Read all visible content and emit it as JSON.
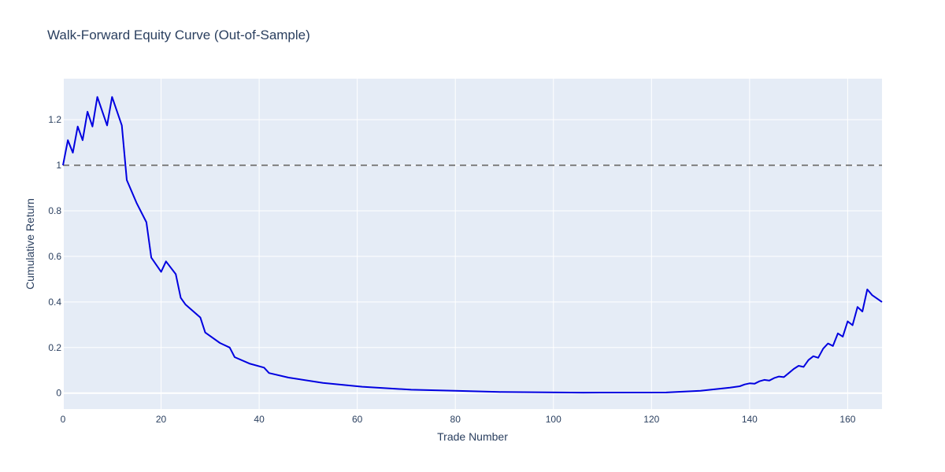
{
  "chart_data": {
    "type": "line",
    "title": "Walk-Forward Equity Curve (Out-of-Sample)",
    "xlabel": "Trade Number",
    "ylabel": "Cumulative Return",
    "xlim": [
      0,
      167
    ],
    "ylim": [
      -0.07,
      1.38
    ],
    "xticks": [
      0,
      20,
      40,
      60,
      80,
      100,
      120,
      140,
      160
    ],
    "yticks": [
      0,
      0.2,
      0.4,
      0.6,
      0.8,
      1,
      1.2
    ],
    "xtick_labels": [
      "0",
      "20",
      "40",
      "60",
      "80",
      "100",
      "120",
      "140",
      "160"
    ],
    "ytick_labels": [
      "0",
      "0.2",
      "0.4",
      "0.6",
      "0.8",
      "1",
      "1.2"
    ],
    "reference_line": {
      "y": 1,
      "style": "dashed",
      "color": "#808080"
    },
    "grid": true,
    "colors": {
      "plot_bg": "#e5ecf6",
      "grid": "#ffffff",
      "series": "#0000e0",
      "text": "#2a3f5f"
    },
    "series": [
      {
        "x": [
          0,
          1,
          2,
          3,
          4,
          5,
          6,
          7,
          9,
          10,
          12,
          13,
          15,
          17,
          18,
          20,
          21,
          23,
          24,
          25,
          28,
          29,
          32,
          34,
          35,
          38,
          41,
          42,
          46,
          53,
          61,
          71,
          80,
          89,
          106,
          123,
          130,
          136,
          138,
          139,
          140,
          141,
          142,
          143,
          144,
          145,
          146,
          147,
          148,
          149,
          150,
          151,
          152,
          153,
          154,
          155,
          156,
          157,
          158,
          159,
          160,
          161,
          162,
          163,
          164,
          165,
          167
        ],
        "y": [
          1.0,
          1.11,
          1.055,
          1.17,
          1.11,
          1.235,
          1.17,
          1.3,
          1.175,
          1.3,
          1.175,
          0.935,
          0.835,
          0.75,
          0.595,
          0.532,
          0.578,
          0.522,
          0.418,
          0.388,
          0.332,
          0.266,
          0.22,
          0.2,
          0.158,
          0.13,
          0.112,
          0.088,
          0.068,
          0.045,
          0.028,
          0.015,
          0.01,
          0.005,
          0.002,
          0.003,
          0.01,
          0.024,
          0.03,
          0.038,
          0.043,
          0.041,
          0.052,
          0.058,
          0.055,
          0.066,
          0.073,
          0.07,
          0.088,
          0.106,
          0.12,
          0.115,
          0.145,
          0.162,
          0.155,
          0.195,
          0.218,
          0.207,
          0.262,
          0.248,
          0.315,
          0.298,
          0.378,
          0.358,
          0.455,
          0.43,
          0.4
        ]
      }
    ]
  }
}
